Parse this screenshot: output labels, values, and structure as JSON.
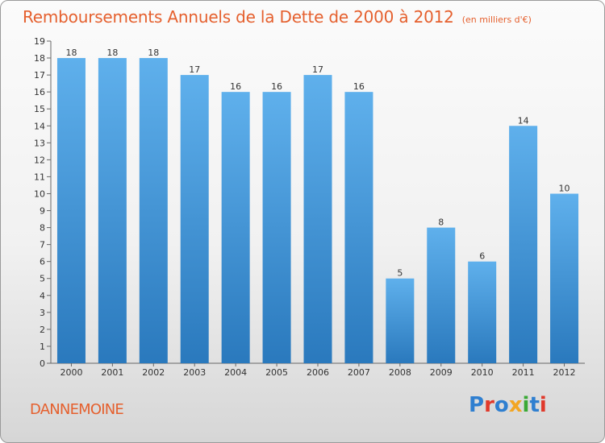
{
  "title": "Remboursements Annuels de la Dette de 2000 à 2012",
  "unit": "(en milliers d'€)",
  "commune": "DANNEMOINE",
  "logo": {
    "text": "Proxiti",
    "colors": [
      "#2f7fd0",
      "#e0392b",
      "#2f7fd0",
      "#f2a623",
      "#3aa935",
      "#2f7fd0",
      "#e0392b"
    ]
  },
  "colors": {
    "bar_light": "#5fb0ec",
    "bar_dark": "#2a79bd",
    "accent": "#e5602e"
  },
  "chart_data": {
    "type": "bar",
    "title": "Remboursements Annuels de la Dette de 2000 à 2012",
    "categories": [
      "2000",
      "2001",
      "2002",
      "2003",
      "2004",
      "2005",
      "2006",
      "2007",
      "2008",
      "2009",
      "2010",
      "2011",
      "2012"
    ],
    "values": [
      18,
      18,
      18,
      17,
      16,
      16,
      17,
      16,
      5,
      8,
      6,
      14,
      10
    ],
    "ylim": [
      0,
      19
    ],
    "yticks": [
      0,
      1,
      2,
      3,
      4,
      5,
      6,
      7,
      8,
      9,
      10,
      11,
      12,
      13,
      14,
      15,
      16,
      17,
      18,
      19
    ],
    "xlabel": "",
    "ylabel": "",
    "grid": false,
    "data_labels": true
  }
}
